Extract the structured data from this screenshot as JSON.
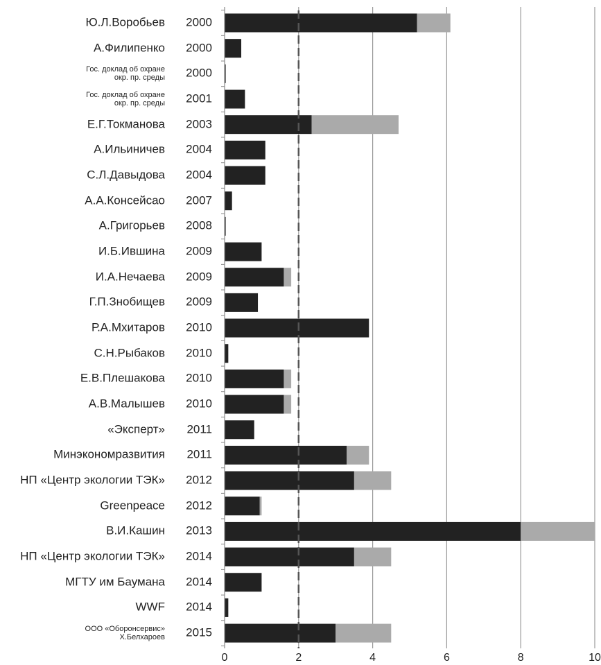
{
  "chart_data": {
    "type": "bar",
    "orientation": "horizontal",
    "stacked": true,
    "categories": [
      "Ю.Л.Воробьев",
      "А.Филипенко",
      "Гос. доклад об охране\nокр. пр. среды",
      "Гос. доклад об охране\nокр. пр. среды",
      "Е.Г.Токманова",
      "А.Ильиничев",
      "С.Л.Давыдова",
      "А.А.Консейсао",
      "А.Григорьев",
      "И.Б.Ившина",
      "И.А.Нечаева",
      "Г.П.Знобищев",
      "Р.А.Мхитаров",
      "С.Н.Рыбаков",
      "Е.В.Плешакова",
      "А.В.Малышев",
      "«Эксперт»",
      "Минэкономразвития",
      "НП «Центр экологии ТЭК»",
      "Greenpeace",
      "В.И.Кашин",
      "НП «Центр экологии ТЭК»",
      "МГТУ им Баумана",
      "WWF",
      "ООО «Оборонсервис»\nХ.Белхароев"
    ],
    "years": [
      "2000",
      "2000",
      "2000",
      "2001",
      "2003",
      "2004",
      "2004",
      "2007",
      "2008",
      "2009",
      "2009",
      "2009",
      "2010",
      "2010",
      "2010",
      "2010",
      "2011",
      "2011",
      "2012",
      "2012",
      "2013",
      "2014",
      "2014",
      "2014",
      "2015"
    ],
    "series": [
      {
        "color": "#222222",
        "values": [
          5.2,
          0.45,
          0.03,
          0.55,
          2.35,
          1.1,
          1.1,
          0.2,
          0.03,
          1.0,
          1.6,
          0.9,
          3.9,
          0.1,
          1.6,
          1.6,
          0.8,
          3.3,
          3.5,
          0.95,
          8.0,
          3.5,
          1.0,
          0.1,
          3.0
        ]
      },
      {
        "color": "#aaaaaa",
        "values": [
          0.9,
          0,
          0,
          0,
          2.35,
          0,
          0,
          0,
          0,
          0,
          0.2,
          0,
          0,
          0,
          0.2,
          0.2,
          0,
          0.6,
          1.0,
          0.05,
          2.0,
          1.0,
          0,
          0,
          1.5
        ]
      }
    ],
    "xlim": [
      0,
      10
    ],
    "xticks": [
      0,
      2,
      4,
      6,
      8,
      10
    ],
    "grid": true,
    "reference_line": 2
  }
}
